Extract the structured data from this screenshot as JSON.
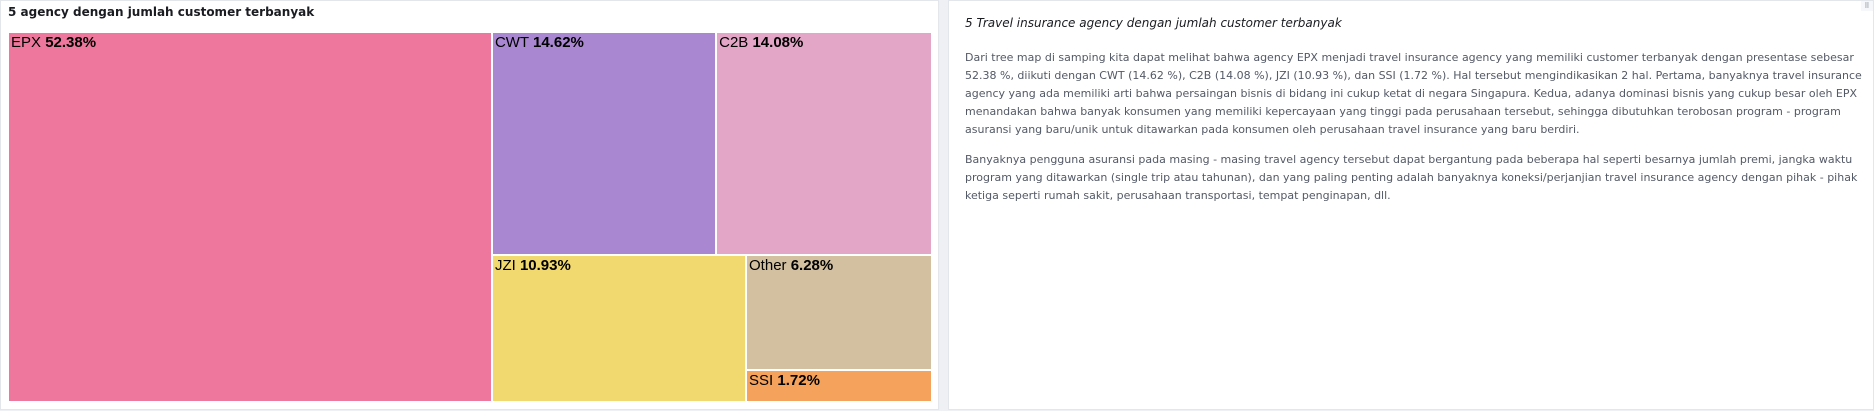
{
  "left_panel": {
    "title": "5 agency dengan jumlah customer terbanyak"
  },
  "right_panel": {
    "title": "5 Travel insurance agency dengan jumlah customer terbanyak",
    "paragraphs": [
      "Dari tree map di samping kita dapat melihat bahwa agency EPX menjadi travel insurance agency yang memiliki customer terbanyak dengan presentase sebesar 52.38 %, diikuti dengan CWT (14.62 %), C2B (14.08 %), JZI (10.93 %), dan SSI (1.72 %). Hal tersebut mengindikasikan 2 hal. Pertama, banyaknya travel insurance agency yang ada memiliki arti bahwa persaingan bisnis di bidang ini cukup ketat di negara Singapura. Kedua, adanya dominasi bisnis yang cukup besar oleh EPX menandakan bahwa banyak konsumen yang memiliki kepercayaan yang tinggi pada perusahaan tersebut, sehingga dibutuhkan terobosan program - program asuransi yang baru/unik untuk ditawarkan pada konsumen oleh perusahaan travel insurance yang baru berdiri.",
      "Banyaknya pengguna asuransi pada masing - masing travel agency tersebut dapat bergantung pada beberapa hal seperti besarnya jumlah premi, jangka waktu program yang ditawarkan (single trip atau tahunan), dan yang paling penting adalah banyaknya koneksi/perjanjian travel insurance agency dengan pihak - pihak ketiga seperti rumah sakit, perusahaan transportasi, tempat penginapan, dll."
    ]
  },
  "chart_data": {
    "type": "treemap",
    "title": "5 agency dengan jumlah customer terbanyak",
    "categories": [
      "EPX",
      "CWT",
      "C2B",
      "JZI",
      "Other",
      "SSI"
    ],
    "values": [
      52.38,
      14.62,
      14.08,
      10.93,
      6.28,
      1.72
    ],
    "labels": [
      "52.38%",
      "14.62%",
      "14.08%",
      "10.93%",
      "6.28%",
      "1.72%"
    ],
    "colors": [
      "#ee789d",
      "#a987d1",
      "#e4a6c7",
      "#f1d86f",
      "#d2c0a0",
      "#f5a35c"
    ]
  }
}
